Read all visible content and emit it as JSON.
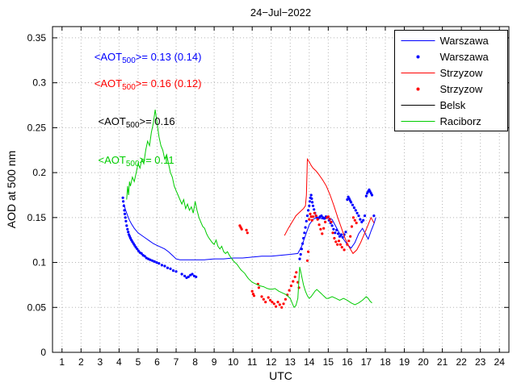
{
  "chart_data": {
    "type": "line",
    "title": "24−Jul−2022",
    "xlabel": "UTC",
    "ylabel": "AOD at 500 nm",
    "xlim": [
      0.5,
      24.5
    ],
    "ylim": [
      0,
      0.3625
    ],
    "grid": true,
    "legend_position": "top-right",
    "xticks": [
      1,
      2,
      3,
      4,
      5,
      6,
      7,
      8,
      9,
      10,
      11,
      12,
      13,
      14,
      15,
      16,
      17,
      18,
      19,
      20,
      21,
      22,
      23,
      24
    ],
    "xtick_labels": [
      "1",
      "2",
      "3",
      "4",
      "5",
      "6",
      "7",
      "8",
      "9",
      "10",
      "11",
      "12",
      "13",
      "14",
      "15",
      "16",
      "17",
      "18",
      "19",
      "20",
      "21",
      "22",
      "23",
      "24"
    ],
    "yticks": [
      0,
      0.05,
      0.1,
      0.15,
      0.2,
      0.25,
      0.3,
      0.35
    ],
    "ytick_labels": [
      "0",
      "0.05",
      "0.1",
      "0.15",
      "0.2",
      "0.25",
      "0.3",
      "0.35"
    ],
    "colors": {
      "warszawa": "#0000ff",
      "strzyzow": "#ff0000",
      "belsk": "#000000",
      "raciborz": "#00cc00"
    },
    "annotations": [
      {
        "pre": "<AOT",
        "sub": "500",
        "post": ">= 0.13 (0.14)",
        "color": "#0000ff",
        "x": 2.7,
        "y": 0.325
      },
      {
        "pre": "<AOT",
        "sub": "500",
        "post": ">= 0.16 (0.12)",
        "color": "#ff0000",
        "x": 2.7,
        "y": 0.295
      },
      {
        "pre": "<AOT",
        "sub": "500",
        "post": ">= 0.16",
        "color": "#000000",
        "x": 2.9,
        "y": 0.253
      },
      {
        "pre": "<AOT",
        "sub": "500",
        "post": ">= 0.11",
        "color": "#00cc00",
        "x": 2.9,
        "y": 0.21
      }
    ],
    "series": [
      {
        "name": "Warszawa",
        "style": "line",
        "color": "#0000ff",
        "x": [
          4.25,
          4.35,
          4.45,
          4.55,
          4.65,
          4.8,
          5.0,
          5.2,
          5.4,
          5.6,
          5.8,
          6.0,
          6.2,
          6.4,
          6.6,
          6.8,
          7.0,
          7.2,
          7.5,
          8.0,
          8.5,
          9.0,
          9.5,
          10.0,
          10.5,
          11.0,
          11.5,
          12.0,
          12.5,
          13.0,
          13.4,
          13.6,
          13.8,
          14.0,
          14.2,
          14.4,
          14.6,
          14.8,
          15.0,
          15.2,
          15.4,
          15.6,
          15.8,
          16.0,
          16.2,
          16.4,
          16.6,
          16.8,
          17.0,
          17.1,
          17.25,
          17.4,
          17.5
        ],
        "y": [
          0.165,
          0.158,
          0.152,
          0.147,
          0.143,
          0.138,
          0.133,
          0.13,
          0.127,
          0.124,
          0.121,
          0.119,
          0.117,
          0.115,
          0.112,
          0.108,
          0.104,
          0.103,
          0.103,
          0.103,
          0.103,
          0.104,
          0.104,
          0.105,
          0.105,
          0.106,
          0.107,
          0.107,
          0.108,
          0.109,
          0.11,
          0.118,
          0.13,
          0.142,
          0.148,
          0.15,
          0.149,
          0.148,
          0.15,
          0.148,
          0.14,
          0.132,
          0.126,
          0.12,
          0.116,
          0.122,
          0.132,
          0.138,
          0.13,
          0.126,
          0.135,
          0.143,
          0.15
        ]
      },
      {
        "name": "Warszawa",
        "style": "scatter",
        "color": "#0000ff",
        "x": [
          4.2,
          4.22,
          4.25,
          4.28,
          4.3,
          4.33,
          4.36,
          4.4,
          4.44,
          4.48,
          4.52,
          4.56,
          4.6,
          4.65,
          4.7,
          4.76,
          4.82,
          4.88,
          4.95,
          5.02,
          5.1,
          5.18,
          5.26,
          5.35,
          5.44,
          5.54,
          5.64,
          5.75,
          5.86,
          5.98,
          6.1,
          6.25,
          6.4,
          6.55,
          6.7,
          6.85,
          7.0,
          7.3,
          7.45,
          7.55,
          7.65,
          7.75,
          7.85,
          7.95,
          8.05,
          13.5,
          13.55,
          13.6,
          13.65,
          13.7,
          13.75,
          13.8,
          13.85,
          13.9,
          13.95,
          14.0,
          14.03,
          14.06,
          14.1,
          14.13,
          14.16,
          14.2,
          14.25,
          14.3,
          14.35,
          14.4,
          14.48,
          14.56,
          14.64,
          14.72,
          14.8,
          14.88,
          14.96,
          15.04,
          15.12,
          15.2,
          15.28,
          15.36,
          15.44,
          15.52,
          15.6,
          15.68,
          15.76,
          15.84,
          15.92,
          16.0,
          16.05,
          16.1,
          16.15,
          16.2,
          16.28,
          16.36,
          16.44,
          16.52,
          16.6,
          16.68,
          16.76,
          16.84,
          16.92,
          17.0,
          17.05,
          17.1,
          17.15,
          17.2,
          17.25,
          17.3,
          17.4
        ],
        "y": [
          0.172,
          0.168,
          0.163,
          0.158,
          0.154,
          0.15,
          0.146,
          0.141,
          0.137,
          0.134,
          0.131,
          0.129,
          0.127,
          0.125,
          0.123,
          0.121,
          0.119,
          0.117,
          0.115,
          0.113,
          0.111,
          0.11,
          0.108,
          0.107,
          0.105,
          0.104,
          0.103,
          0.102,
          0.101,
          0.1,
          0.099,
          0.097,
          0.096,
          0.094,
          0.093,
          0.091,
          0.09,
          0.087,
          0.085,
          0.083,
          0.084,
          0.086,
          0.087,
          0.085,
          0.084,
          0.104,
          0.109,
          0.115,
          0.121,
          0.127,
          0.133,
          0.139,
          0.146,
          0.152,
          0.158,
          0.163,
          0.168,
          0.172,
          0.175,
          0.171,
          0.167,
          0.163,
          0.159,
          0.155,
          0.152,
          0.15,
          0.149,
          0.151,
          0.152,
          0.15,
          0.149,
          0.151,
          0.15,
          0.147,
          0.144,
          0.141,
          0.137,
          0.133,
          0.136,
          0.132,
          0.129,
          0.131,
          0.128,
          0.131,
          0.134,
          0.17,
          0.173,
          0.171,
          0.169,
          0.167,
          0.164,
          0.161,
          0.158,
          0.155,
          0.152,
          0.148,
          0.145,
          0.147,
          0.152,
          0.174,
          0.177,
          0.179,
          0.181,
          0.179,
          0.177,
          0.175,
          0.152
        ]
      },
      {
        "name": "Strzyzow",
        "style": "line",
        "color": "#ff0000",
        "x": [
          12.7,
          12.9,
          13.1,
          13.3,
          13.5,
          13.7,
          13.8,
          13.85,
          13.9,
          14.0,
          14.1,
          14.2,
          14.35,
          14.5,
          14.7,
          14.9,
          15.1,
          15.3,
          15.5,
          15.7,
          15.9,
          16.1,
          16.3,
          16.5,
          16.7,
          16.9,
          17.1,
          17.25,
          17.4
        ],
        "y": [
          0.13,
          0.138,
          0.145,
          0.152,
          0.156,
          0.16,
          0.163,
          0.175,
          0.215,
          0.212,
          0.208,
          0.205,
          0.202,
          0.198,
          0.192,
          0.185,
          0.175,
          0.163,
          0.15,
          0.138,
          0.126,
          0.117,
          0.11,
          0.114,
          0.122,
          0.132,
          0.142,
          0.15,
          0.144
        ]
      },
      {
        "name": "Strzyzow",
        "style": "scatter",
        "color": "#ff0000",
        "x": [
          10.35,
          10.4,
          10.45,
          10.7,
          10.75,
          11.0,
          11.05,
          11.1,
          11.3,
          11.35,
          11.5,
          11.6,
          11.7,
          11.85,
          11.95,
          12.05,
          12.15,
          12.25,
          12.35,
          12.45,
          12.55,
          12.65,
          12.75,
          12.85,
          12.95,
          13.05,
          13.15,
          13.25,
          13.32,
          13.4,
          13.46,
          13.9,
          13.95,
          14.0,
          14.05,
          14.1,
          14.15,
          14.2,
          14.28,
          14.36,
          14.44,
          14.52,
          14.6,
          14.68,
          14.76,
          14.84,
          14.92,
          15.0,
          15.08,
          15.16,
          15.24,
          15.32,
          15.4,
          15.48,
          15.56,
          15.64,
          15.72,
          15.84,
          16.0,
          16.08,
          16.16,
          16.24,
          16.32,
          16.4,
          16.48
        ],
        "y": [
          0.141,
          0.139,
          0.137,
          0.136,
          0.133,
          0.068,
          0.065,
          0.063,
          0.076,
          0.072,
          0.062,
          0.059,
          0.056,
          0.061,
          0.058,
          0.056,
          0.054,
          0.051,
          0.056,
          0.053,
          0.05,
          0.054,
          0.059,
          0.064,
          0.069,
          0.074,
          0.079,
          0.084,
          0.089,
          0.078,
          0.072,
          0.102,
          0.112,
          0.148,
          0.154,
          0.151,
          0.147,
          0.151,
          0.155,
          0.152,
          0.148,
          0.142,
          0.137,
          0.132,
          0.138,
          0.145,
          0.15,
          0.151,
          0.148,
          0.145,
          0.133,
          0.127,
          0.123,
          0.12,
          0.124,
          0.12,
          0.117,
          0.114,
          0.12,
          0.124,
          0.129,
          0.14,
          0.15,
          0.147,
          0.144
        ]
      },
      {
        "name": "Belsk",
        "style": "line",
        "color": "#000000",
        "x": [],
        "y": []
      },
      {
        "name": "Raciborz",
        "style": "line",
        "color": "#00cc00",
        "x": [
          4.4,
          4.45,
          4.5,
          4.55,
          4.6,
          4.7,
          4.8,
          4.9,
          5.0,
          5.1,
          5.2,
          5.3,
          5.4,
          5.5,
          5.6,
          5.7,
          5.8,
          5.9,
          6.0,
          6.1,
          6.2,
          6.3,
          6.4,
          6.5,
          6.6,
          6.7,
          6.8,
          6.9,
          7.0,
          7.1,
          7.2,
          7.3,
          7.4,
          7.5,
          7.6,
          7.7,
          7.8,
          7.9,
          8.0,
          8.1,
          8.2,
          8.3,
          8.4,
          8.5,
          8.6,
          8.7,
          8.8,
          8.9,
          9.0,
          9.1,
          9.2,
          9.3,
          9.4,
          9.5,
          9.6,
          9.7,
          9.8,
          9.9,
          10.0,
          10.1,
          10.2,
          10.3,
          10.4,
          10.5,
          10.6,
          10.7,
          10.8,
          10.9,
          11.0,
          11.2,
          11.4,
          11.6,
          11.8,
          12.0,
          12.2,
          12.4,
          12.6,
          12.8,
          13.0,
          13.1,
          13.2,
          13.3,
          13.4,
          13.5,
          13.55,
          13.6,
          13.7,
          13.8,
          13.9,
          14.0,
          14.1,
          14.2,
          14.3,
          14.4,
          14.5,
          14.6,
          14.7,
          14.8,
          14.9,
          15.0,
          15.2,
          15.4,
          15.6,
          15.8,
          16.0,
          16.2,
          16.4,
          16.6,
          16.8,
          17.0,
          17.1,
          17.2,
          17.3
        ],
        "y": [
          0.17,
          0.185,
          0.175,
          0.19,
          0.185,
          0.195,
          0.19,
          0.2,
          0.21,
          0.205,
          0.215,
          0.21,
          0.225,
          0.235,
          0.23,
          0.245,
          0.255,
          0.27,
          0.255,
          0.24,
          0.23,
          0.225,
          0.215,
          0.22,
          0.21,
          0.2,
          0.195,
          0.185,
          0.18,
          0.175,
          0.17,
          0.165,
          0.17,
          0.16,
          0.165,
          0.158,
          0.162,
          0.155,
          0.168,
          0.158,
          0.15,
          0.145,
          0.14,
          0.138,
          0.132,
          0.128,
          0.125,
          0.122,
          0.12,
          0.125,
          0.118,
          0.115,
          0.118,
          0.112,
          0.11,
          0.112,
          0.108,
          0.105,
          0.102,
          0.1,
          0.098,
          0.095,
          0.092,
          0.09,
          0.088,
          0.085,
          0.082,
          0.08,
          0.078,
          0.076,
          0.074,
          0.073,
          0.071,
          0.07,
          0.071,
          0.068,
          0.066,
          0.064,
          0.06,
          0.055,
          0.05,
          0.052,
          0.06,
          0.095,
          0.09,
          0.085,
          0.075,
          0.068,
          0.063,
          0.06,
          0.062,
          0.065,
          0.068,
          0.07,
          0.068,
          0.066,
          0.064,
          0.062,
          0.06,
          0.06,
          0.062,
          0.06,
          0.058,
          0.06,
          0.058,
          0.055,
          0.053,
          0.055,
          0.058,
          0.062,
          0.06,
          0.057,
          0.055
        ]
      }
    ]
  }
}
